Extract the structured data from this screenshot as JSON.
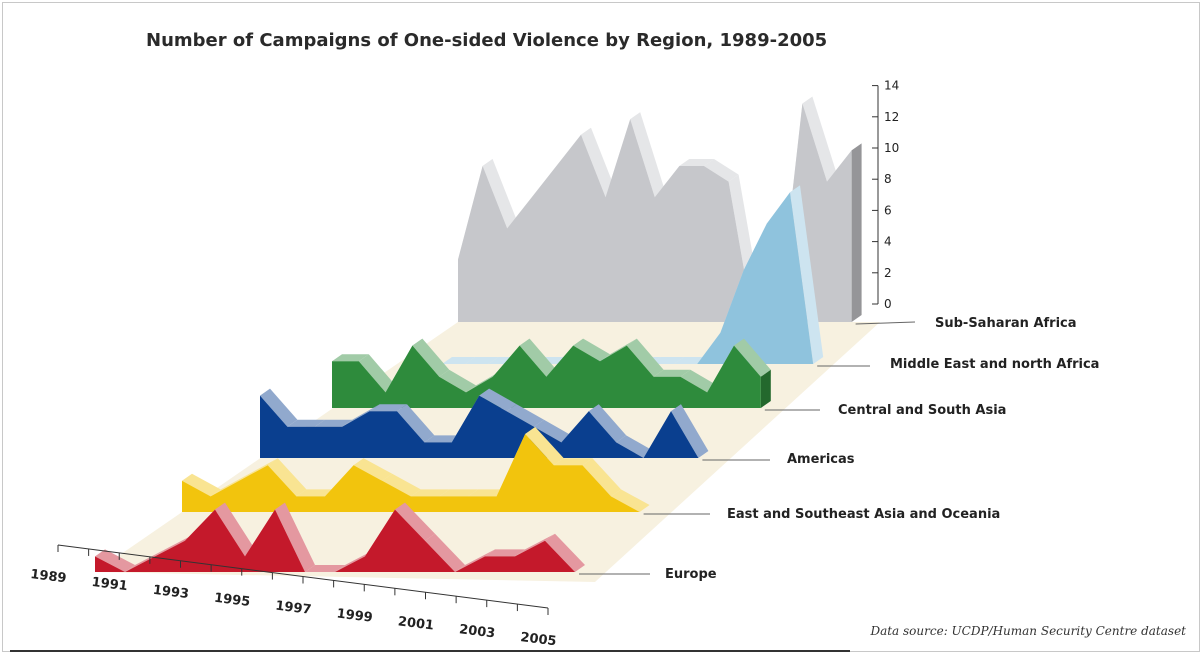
{
  "chart_data": {
    "type": "area",
    "title": "Number of Campaigns of One-sided Violence by Region, 1989-2005",
    "source": "Data source: UCDP/Human Security Centre dataset",
    "x": [
      1989,
      1990,
      1991,
      1992,
      1993,
      1994,
      1995,
      1996,
      1997,
      1998,
      1999,
      2000,
      2001,
      2002,
      2003,
      2004,
      2005
    ],
    "x_tick_labels": [
      "1989",
      "1991",
      "1993",
      "1995",
      "1997",
      "1999",
      "2001",
      "2003",
      "2005"
    ],
    "y_ticks": [
      "0",
      "2",
      "4",
      "6",
      "8",
      "10",
      "12",
      "14"
    ],
    "ylim": [
      0,
      14
    ],
    "series": [
      {
        "name": "Sub-Saharan Africa",
        "color": "#c6c7cb",
        "values": [
          4,
          10,
          6,
          8,
          10,
          12,
          8,
          13,
          8,
          10,
          10,
          9,
          0,
          0,
          14,
          9,
          11
        ]
      },
      {
        "name": "Middle East and north Africa",
        "color": "#8fc3dd",
        "values": [
          0,
          0,
          0,
          0,
          0,
          0,
          0,
          0,
          0,
          0,
          0,
          0,
          2,
          6,
          9,
          11,
          0
        ]
      },
      {
        "name": "Central and South Asia",
        "color": "#2e8b3c",
        "values": [
          3,
          3,
          1,
          4,
          2,
          1,
          2,
          4,
          2,
          4,
          3,
          4,
          2,
          2,
          1,
          4,
          2
        ]
      },
      {
        "name": "Americas",
        "color": "#0a3f8f",
        "values": [
          4,
          2,
          2,
          2,
          3,
          3,
          1,
          1,
          4,
          3,
          2,
          1,
          3,
          1,
          0,
          3,
          0
        ]
      },
      {
        "name": "East and Southeast Asia and Oceania",
        "color": "#f2c40d",
        "values": [
          2,
          1,
          2,
          3,
          1,
          1,
          3,
          2,
          1,
          1,
          1,
          1,
          5,
          3,
          3,
          1,
          0
        ]
      },
      {
        "name": "Europe",
        "color": "#c4192b",
        "values": [
          1,
          0,
          1,
          2,
          4,
          1,
          4,
          0,
          0,
          1,
          4,
          2,
          0,
          1,
          1,
          2,
          0
        ]
      }
    ]
  }
}
